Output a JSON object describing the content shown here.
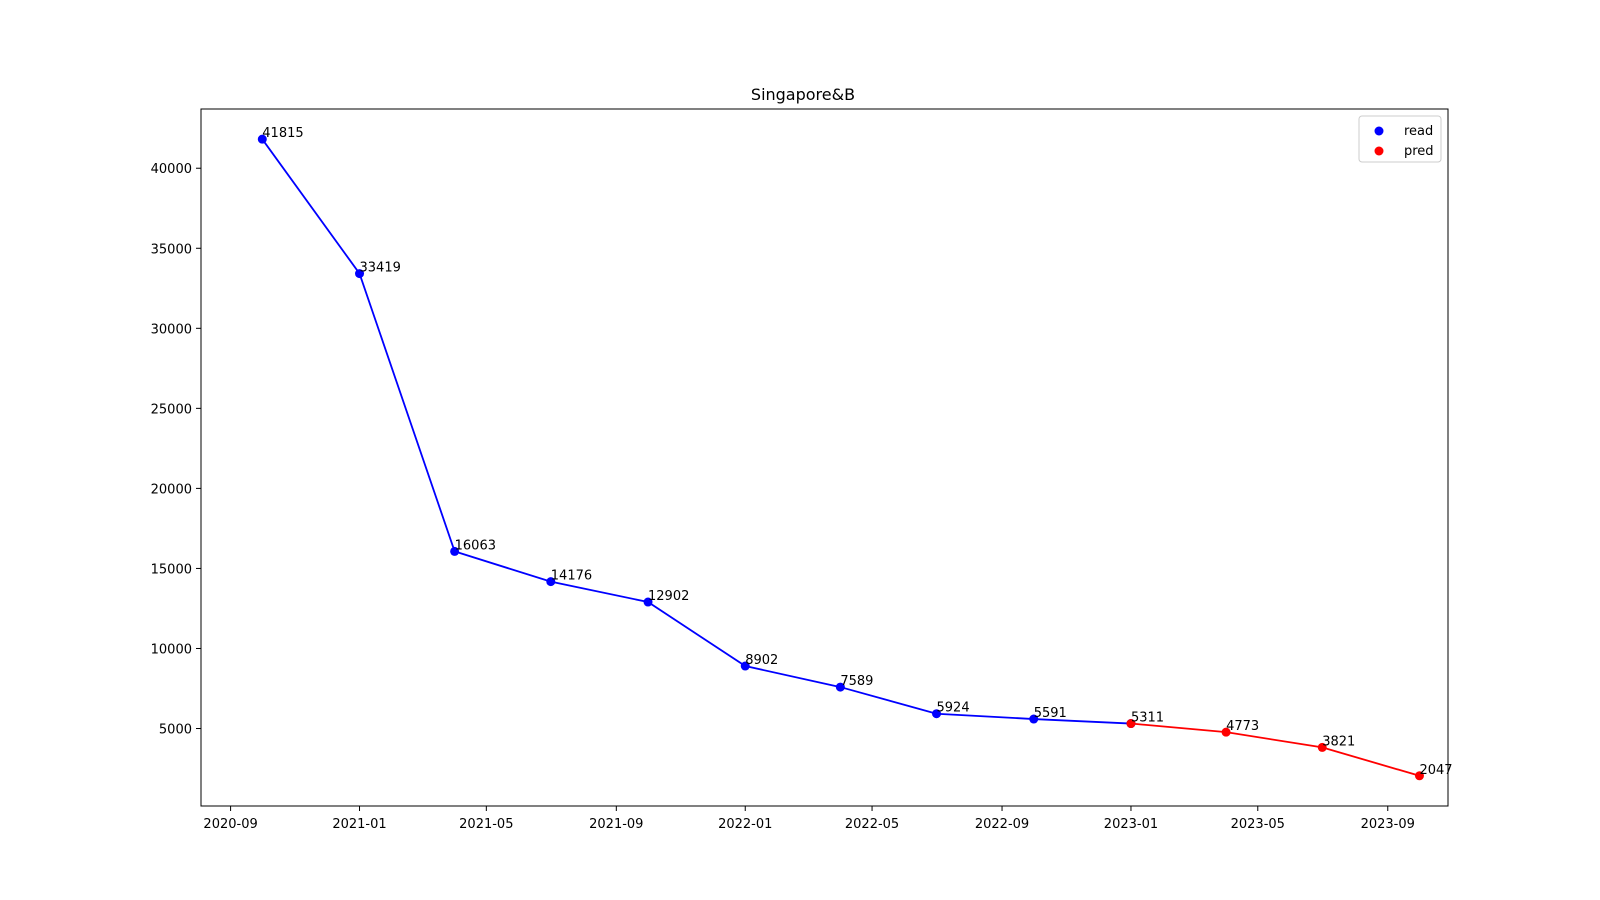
{
  "chart_data": {
    "type": "line",
    "title": "Singapore&B",
    "xlabel": "",
    "ylabel": "",
    "x_ticks": [
      "2020-09",
      "2021-01",
      "2021-05",
      "2021-09",
      "2022-01",
      "2022-05",
      "2022-09",
      "2023-01",
      "2023-05",
      "2023-09"
    ],
    "y_ticks": [
      5000,
      10000,
      15000,
      20000,
      25000,
      30000,
      35000,
      40000
    ],
    "xlim": [
      "2020-08-04",
      "2023-10-28"
    ],
    "ylim": [
      160,
      43700
    ],
    "grid": false,
    "legend_position": "top-right",
    "series": [
      {
        "name": "read",
        "color": "#0000ff",
        "points": [
          {
            "x": "2020-10-01",
            "y": 41815
          },
          {
            "x": "2021-01-01",
            "y": 33419
          },
          {
            "x": "2021-04-01",
            "y": 16063
          },
          {
            "x": "2021-07-01",
            "y": 14176
          },
          {
            "x": "2021-10-01",
            "y": 12902
          },
          {
            "x": "2022-01-01",
            "y": 8902
          },
          {
            "x": "2022-04-01",
            "y": 7589
          },
          {
            "x": "2022-07-01",
            "y": 5924
          },
          {
            "x": "2022-10-01",
            "y": 5591
          },
          {
            "x": "2023-01-01",
            "y": 5311
          }
        ]
      },
      {
        "name": "pred",
        "color": "#ff0000",
        "points": [
          {
            "x": "2023-01-01",
            "y": 5311
          },
          {
            "x": "2023-04-01",
            "y": 4773
          },
          {
            "x": "2023-07-01",
            "y": 3821
          },
          {
            "x": "2023-10-01",
            "y": 2047
          }
        ]
      }
    ],
    "data_labels": [
      {
        "x": "2020-10-01",
        "y": 41815,
        "text": "41815"
      },
      {
        "x": "2021-01-01",
        "y": 33419,
        "text": "33419"
      },
      {
        "x": "2021-04-01",
        "y": 16063,
        "text": "16063"
      },
      {
        "x": "2021-07-01",
        "y": 14176,
        "text": "14176"
      },
      {
        "x": "2021-10-01",
        "y": 12902,
        "text": "12902"
      },
      {
        "x": "2022-01-01",
        "y": 8902,
        "text": "8902"
      },
      {
        "x": "2022-04-01",
        "y": 7589,
        "text": "7589"
      },
      {
        "x": "2022-07-01",
        "y": 5924,
        "text": "5924"
      },
      {
        "x": "2022-10-01",
        "y": 5591,
        "text": "5591"
      },
      {
        "x": "2023-01-01",
        "y": 5311,
        "text": "5311"
      },
      {
        "x": "2023-04-01",
        "y": 4773,
        "text": "4773"
      },
      {
        "x": "2023-07-01",
        "y": 3821,
        "text": "3821"
      },
      {
        "x": "2023-10-01",
        "y": 2047,
        "text": "2047"
      }
    ]
  }
}
